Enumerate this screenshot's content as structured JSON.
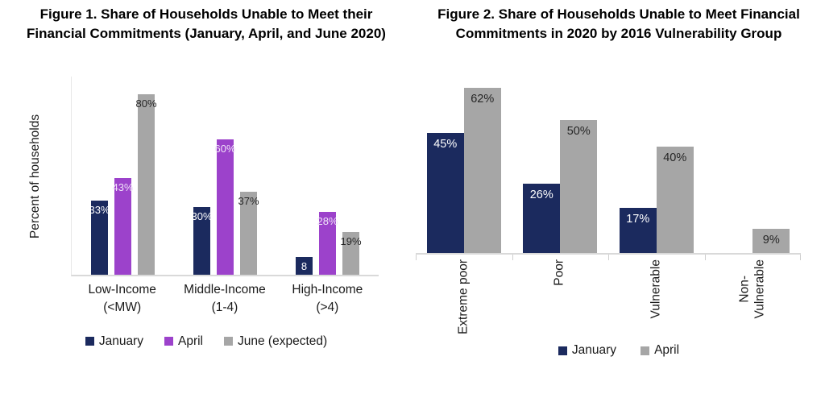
{
  "colors": {
    "january_navy": "#1B2A5E",
    "april_purple": "#9C42CB",
    "gray_series": "#A6A6A6",
    "axis_line": "#D9D9D9",
    "dark_label_text": "#262626"
  },
  "chart_data": [
    {
      "type": "bar",
      "title": "Figure 1. Share of Households Unable to Meet their Financial Commitments (January, April, and June 2020)",
      "ylabel": "Percent of households",
      "xlabel": "",
      "ylim": [
        0,
        88
      ],
      "grid": false,
      "legend_position": "bottom",
      "categories": [
        "Low-Income\n(<MW)",
        "Middle-Income\n(1-4)",
        "High-Income\n(>4)"
      ],
      "series": [
        {
          "name": "January",
          "color": "#1B2A5E",
          "label_color": "#FFFFFF",
          "values": [
            33,
            30,
            8
          ],
          "labels": [
            "33%",
            "30%",
            "8"
          ]
        },
        {
          "name": "April",
          "color": "#9C42CB",
          "label_color": "#F0E4F8",
          "values": [
            43,
            60,
            28
          ],
          "labels": [
            "43%",
            "60%",
            "28%"
          ]
        },
        {
          "name": "June (expected)",
          "color": "#A6A6A6",
          "label_color": "#262626",
          "values": [
            80,
            37,
            19
          ],
          "labels": [
            "80%",
            "37%",
            "19%"
          ]
        }
      ]
    },
    {
      "type": "bar",
      "title": "Figure 2. Share of Households Unable to Meet Financial Commitments in 2020 by 2016 Vulnerability Group",
      "ylabel": "",
      "xlabel": "",
      "ylim": [
        0,
        68
      ],
      "grid": false,
      "legend_position": "bottom",
      "categories": [
        "Extreme poor",
        "Poor",
        "Vulnerable",
        "Non-\nVulnerable"
      ],
      "series": [
        {
          "name": "January",
          "color": "#1B2A5E",
          "label_color": "#FFFFFF",
          "values": [
            45,
            26,
            17,
            0
          ],
          "labels": [
            "45%",
            "26%",
            "17%",
            ""
          ]
        },
        {
          "name": "April",
          "color": "#A6A6A6",
          "label_color": "#262626",
          "values": [
            62,
            50,
            40,
            9
          ],
          "labels": [
            "62%",
            "50%",
            "40%",
            "9%"
          ]
        }
      ]
    }
  ]
}
